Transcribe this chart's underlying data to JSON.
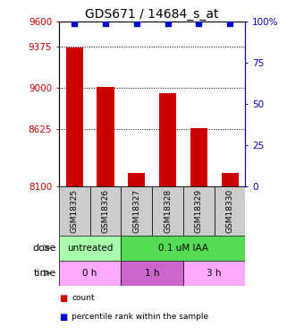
{
  "title": "GDS671 / 14684_s_at",
  "samples": [
    "GSM18325",
    "GSM18326",
    "GSM18327",
    "GSM18328",
    "GSM18329",
    "GSM18330"
  ],
  "bar_values": [
    9370,
    9010,
    8220,
    8950,
    8630,
    8220
  ],
  "percentile_values": [
    99,
    99,
    99,
    99,
    99,
    99
  ],
  "ylim_left": [
    8100,
    9600
  ],
  "ylim_right": [
    0,
    100
  ],
  "yticks_left": [
    8100,
    8625,
    9000,
    9375,
    9600
  ],
  "yticks_right": [
    0,
    25,
    50,
    75,
    100
  ],
  "ytick_labels_right": [
    "0",
    "25",
    "50",
    "75",
    "100%"
  ],
  "grid_lines": [
    8625,
    9000,
    9375
  ],
  "bar_color": "#cc0000",
  "percentile_color": "#0000cc",
  "sample_box_color": "#cccccc",
  "dose_groups": [
    {
      "label": "untreated",
      "span": [
        0,
        2
      ],
      "color": "#aaffaa"
    },
    {
      "label": "0.1 uM IAA",
      "span": [
        2,
        6
      ],
      "color": "#55dd55"
    }
  ],
  "time_groups": [
    {
      "label": "0 h",
      "span": [
        0,
        2
      ],
      "color": "#ffaaff"
    },
    {
      "label": "1 h",
      "span": [
        2,
        4
      ],
      "color": "#cc66cc"
    },
    {
      "label": "3 h",
      "span": [
        4,
        6
      ],
      "color": "#ffaaff"
    }
  ],
  "legend_items": [
    {
      "label": "count",
      "color": "#cc0000"
    },
    {
      "label": "percentile rank within the sample",
      "color": "#0000cc"
    }
  ],
  "title_fontsize": 10,
  "tick_fontsize": 7.5,
  "sample_fontsize": 6.5,
  "label_fontsize": 8
}
